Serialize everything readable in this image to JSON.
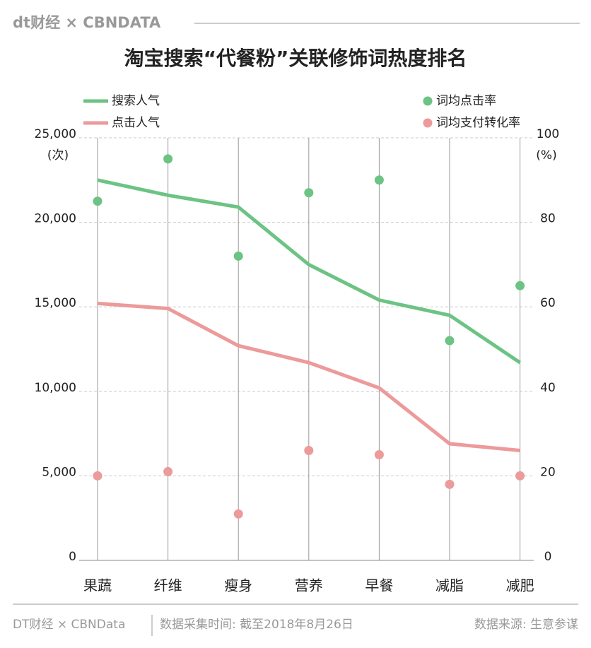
{
  "header": {
    "brand": "dt财经 × CBNDATA"
  },
  "chart_data": {
    "type": "line",
    "title": "淘宝搜索“代餐粉”关联修饰词热度排名",
    "y_label": "(次)",
    "y2_label": "(%)",
    "categories": [
      "果蔬",
      "纤维",
      "瘦身",
      "营养",
      "早餐",
      "减脂",
      "减肥"
    ],
    "ylim": [
      0,
      25000
    ],
    "yticks": [
      0,
      {
        "value": 5000,
        "label": "5,000"
      },
      {
        "value": 10000,
        "label": "10,000"
      },
      {
        "value": 15000,
        "label": "15,000"
      },
      {
        "value": 20000,
        "label": "20,000"
      },
      {
        "value": 25000,
        "label": "25,000"
      }
    ],
    "y2lim": [
      0,
      100
    ],
    "y2ticks": [
      0,
      20,
      40,
      60,
      80,
      100
    ],
    "grid": true,
    "series": [
      {
        "name": "搜索人气",
        "color": "#6cc383",
        "style": "line",
        "values": [
          22500,
          21600,
          20900,
          17500,
          15400,
          14500,
          11700
        ]
      },
      {
        "name": "点击人气",
        "color": "#ec9a9a",
        "style": "line",
        "values": [
          15200,
          14900,
          12700,
          11700,
          10200,
          6900,
          6500
        ]
      },
      {
        "name": "词均点击率",
        "color": "#6cc383",
        "style": "dot",
        "axis": "y2",
        "values": [
          85,
          95,
          72,
          87,
          90,
          52,
          65
        ]
      },
      {
        "name": "词均支付转化率",
        "color": "#ec9a9a",
        "style": "dot",
        "axis": "y2",
        "values": [
          20,
          21,
          11,
          26,
          25,
          18,
          20
        ]
      }
    ]
  },
  "footer": {
    "brand": "DT财经 × CBNData",
    "collected": "数据采集时间: 截至2018年8月26日",
    "source": "数据来源: 生意参谋"
  }
}
